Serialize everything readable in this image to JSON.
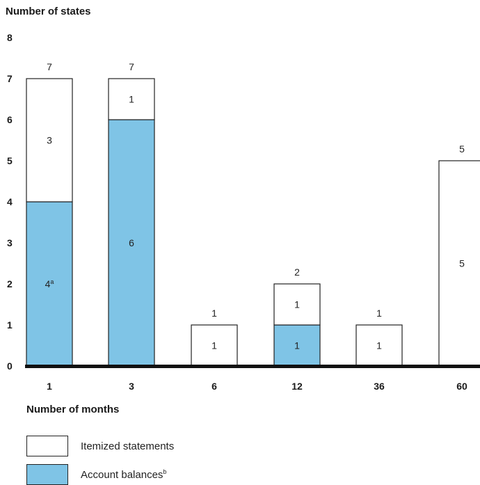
{
  "chart_data": {
    "type": "bar",
    "stacked": true,
    "ylabel": "Number of states",
    "xlabel": "Number of months",
    "ylim": [
      0,
      8
    ],
    "yticks": [
      "0",
      "1",
      "2",
      "3",
      "4",
      "5",
      "6",
      "7",
      "8"
    ],
    "categories": [
      "1",
      "3",
      "6",
      "12",
      "36",
      "60"
    ],
    "series": [
      {
        "name": "Account balances",
        "name_sup": "b",
        "color": "#7fc4e6",
        "values": [
          4,
          6,
          0,
          1,
          0,
          0
        ],
        "labels": [
          "4",
          "6",
          "",
          "1",
          "",
          ""
        ],
        "label_sups": [
          "a",
          "",
          "",
          "",
          "",
          ""
        ]
      },
      {
        "name": "Itemized statements",
        "color": "#ffffff",
        "values": [
          3,
          1,
          1,
          1,
          1,
          5
        ],
        "labels": [
          "3",
          "1",
          "1",
          "1",
          "1",
          "5"
        ]
      }
    ],
    "bottom_labels": [
      "",
      "",
      "1",
      "",
      "1",
      ""
    ],
    "totals": [
      "7",
      "7",
      "1",
      "2",
      "1",
      "5"
    ]
  }
}
